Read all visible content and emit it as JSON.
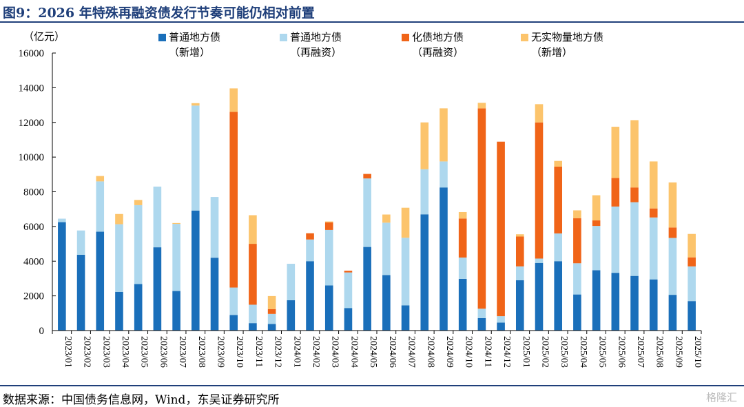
{
  "figure": {
    "title": "图9：2026 年特殊再融资债发行节奏可能仍相对前置",
    "source": "数据来源：中国债务信息网，Wind，东吴证券研究所",
    "watermark": "格隆汇"
  },
  "chart_data": {
    "type": "bar",
    "stacked": true,
    "unit_label": "（亿元）",
    "ylim": [
      0,
      16000
    ],
    "yticks": [
      0,
      2000,
      4000,
      6000,
      8000,
      10000,
      12000,
      14000,
      16000
    ],
    "grid": false,
    "legend_position": "top",
    "categories": [
      "2023/01",
      "2023/02",
      "2023/03",
      "2023/04",
      "2023/05",
      "2023/06",
      "2023/07",
      "2023/08",
      "2023/09",
      "2023/10",
      "2023/11",
      "2023/12",
      "2024/01",
      "2024/02",
      "2024/03",
      "2024/04",
      "2024/05",
      "2024/06",
      "2024/07",
      "2024/08",
      "2024/09",
      "2024/10",
      "2024/11",
      "2024/12",
      "2025/01",
      "2025/02",
      "2025/03",
      "2025/04",
      "2025/05",
      "2025/06",
      "2025/07",
      "2025/08",
      "2025/09",
      "2025/10"
    ],
    "series": [
      {
        "name": "普通地方债",
        "name_line2": "（新增）",
        "color": "#1a6fba",
        "values": [
          6250,
          4370,
          5700,
          2230,
          2680,
          4800,
          2280,
          6920,
          4200,
          900,
          430,
          380,
          1750,
          4000,
          2600,
          1300,
          4820,
          3200,
          1450,
          6700,
          8250,
          2980,
          720,
          460,
          2900,
          3900,
          4000,
          2080,
          3480,
          3330,
          3150,
          2950,
          2060,
          1700
        ]
      },
      {
        "name": "普通地方债",
        "name_line2": "（再融资）",
        "color": "#aed8ee",
        "values": [
          200,
          1400,
          2900,
          3900,
          4550,
          3500,
          3870,
          6050,
          3500,
          1580,
          1060,
          580,
          2100,
          1250,
          3200,
          2050,
          3950,
          3020,
          3900,
          2600,
          1500,
          1230,
          540,
          370,
          800,
          250,
          1600,
          1800,
          2550,
          3820,
          4250,
          3570,
          3280,
          2000
        ]
      },
      {
        "name": "化债地方债",
        "name_line2": "（再融资）",
        "color": "#f06418",
        "values": [
          0,
          0,
          0,
          0,
          0,
          0,
          0,
          0,
          0,
          10130,
          3510,
          280,
          0,
          360,
          440,
          100,
          260,
          0,
          0,
          0,
          0,
          2250,
          11550,
          10060,
          1720,
          7850,
          3850,
          2600,
          320,
          1650,
          850,
          520,
          600,
          520
        ]
      },
      {
        "name": "无实物量地方债",
        "name_line2": "（新增）",
        "color": "#fcc46c",
        "values": [
          0,
          0,
          310,
          590,
          300,
          0,
          50,
          140,
          0,
          1350,
          1650,
          750,
          0,
          0,
          50,
          0,
          0,
          470,
          1730,
          2700,
          3060,
          370,
          320,
          0,
          130,
          1050,
          330,
          450,
          1450,
          2950,
          3880,
          2710,
          2600,
          1350
        ]
      }
    ]
  }
}
